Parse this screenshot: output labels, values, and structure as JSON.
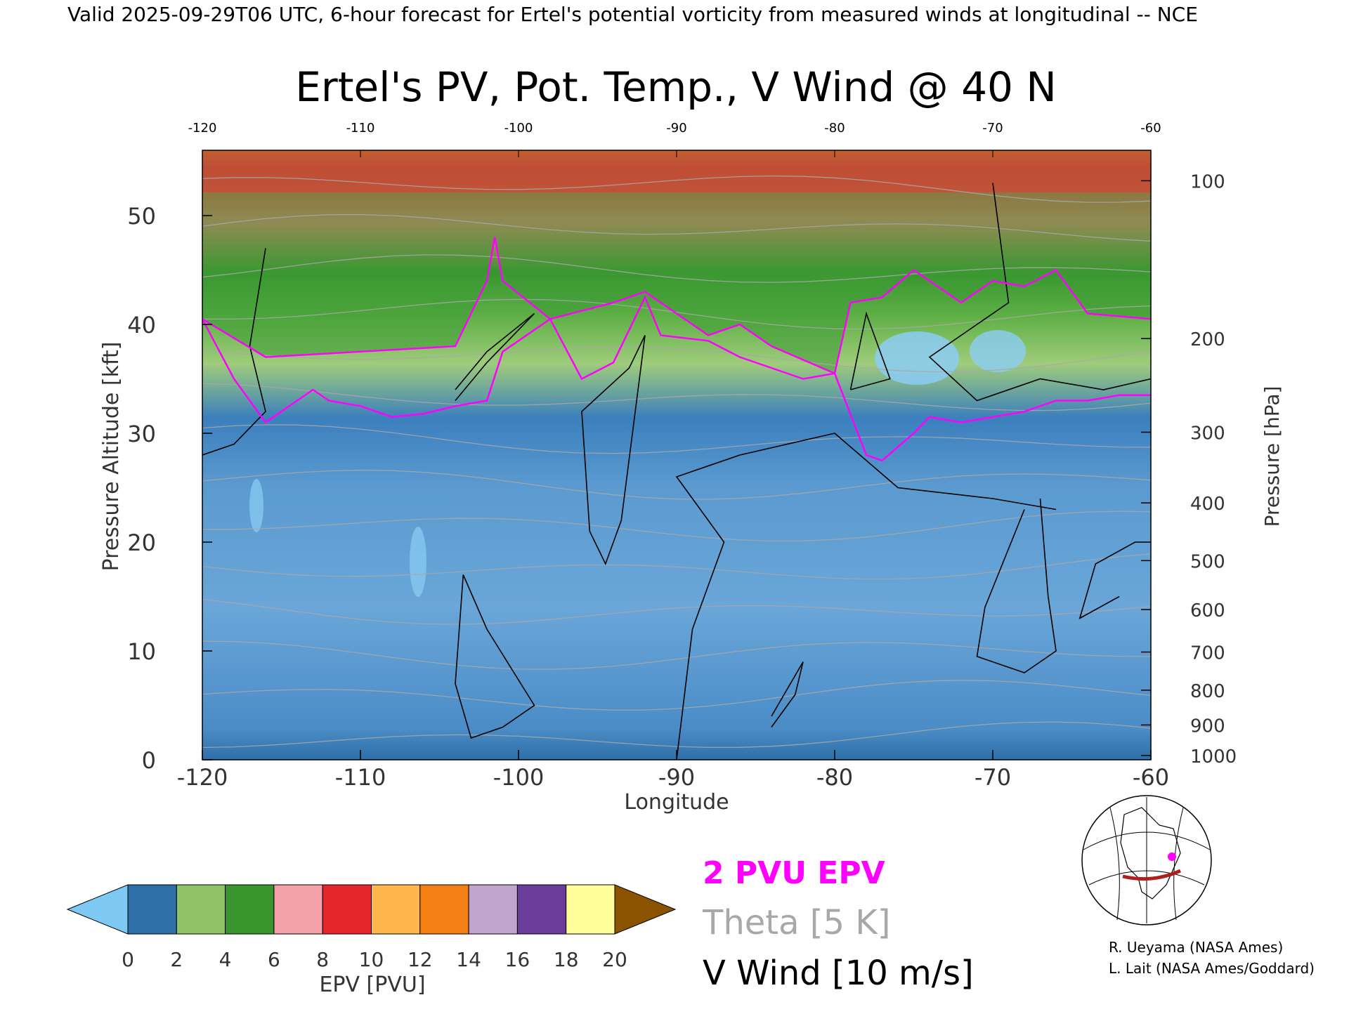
{
  "header": {
    "valid_line": "Valid 2025-09-29T06 UTC, 6-hour forecast for Ertel's potential vorticity from measured winds at longitudinal -- NCE"
  },
  "chart_data": {
    "type": "heatmap",
    "title": "Ertel's PV, Pot. Temp., V Wind @ 40 N",
    "xlabel": "Longitude",
    "ylabel_left": "Pressure Altitude [kft]",
    "ylabel_right": "Pressure [hPa]",
    "xlim": [
      -120,
      -60
    ],
    "ylim": [
      0,
      56
    ],
    "x_ticks": [
      "-120",
      "-110",
      "-100",
      "-90",
      "-80",
      "-70",
      "-60"
    ],
    "top_x_ticks": [
      "-120",
      "-110",
      "-100",
      "-90",
      "-80",
      "-70",
      "-60"
    ],
    "x_tick_values": [
      -120,
      -110,
      -100,
      -90,
      -80,
      -70,
      -60
    ],
    "y_ticks": [
      "0",
      "10",
      "20",
      "30",
      "40",
      "50"
    ],
    "y_tick_values": [
      0,
      10,
      20,
      30,
      40,
      50
    ],
    "pressure_ticks": [
      {
        "label": "100",
        "kft": 53.2
      },
      {
        "label": "200",
        "kft": 38.7
      },
      {
        "label": "300",
        "kft": 30.1
      },
      {
        "label": "400",
        "kft": 23.6
      },
      {
        "label": "500",
        "kft": 18.3
      },
      {
        "label": "600",
        "kft": 13.8
      },
      {
        "label": "700",
        "kft": 9.9
      },
      {
        "label": "800",
        "kft": 6.4
      },
      {
        "label": "900",
        "kft": 3.2
      },
      {
        "label": "1000",
        "kft": 0.4
      }
    ],
    "tropopause_2pvu": [
      [
        -120,
        40.5
      ],
      [
        -118,
        35
      ],
      [
        -116,
        31
      ],
      [
        -114,
        33
      ],
      [
        -113,
        34
      ],
      [
        -112,
        33
      ],
      [
        -110,
        32.5
      ],
      [
        -108,
        31.5
      ],
      [
        -106,
        31.8
      ],
      [
        -104,
        32.5
      ],
      [
        -102,
        33
      ],
      [
        -101,
        37.5
      ],
      [
        -98,
        40.5
      ],
      [
        -96,
        35
      ],
      [
        -94,
        36.5
      ],
      [
        -92,
        42.5
      ],
      [
        -91,
        39
      ],
      [
        -88,
        38.5
      ],
      [
        -86,
        37
      ],
      [
        -84,
        36
      ],
      [
        -82,
        35
      ],
      [
        -80,
        35.5
      ],
      [
        -78,
        28
      ],
      [
        -77,
        27.5
      ],
      [
        -75,
        30
      ],
      [
        -74,
        31.5
      ],
      [
        -72,
        31
      ],
      [
        -70,
        31.5
      ],
      [
        -68,
        32
      ],
      [
        -66,
        33
      ],
      [
        -64,
        33
      ],
      [
        -62,
        33.5
      ],
      [
        -60,
        33.5
      ]
    ],
    "tropopause_upper_2pvu": [
      [
        -120,
        40.5
      ],
      [
        -116,
        37
      ],
      [
        -110,
        37.5
      ],
      [
        -104,
        38
      ],
      [
        -102,
        44
      ],
      [
        -101.5,
        48
      ],
      [
        -101,
        44
      ],
      [
        -98,
        40.5
      ],
      [
        -94,
        42
      ],
      [
        -92,
        43
      ],
      [
        -88,
        39
      ],
      [
        -86,
        40
      ],
      [
        -84,
        38
      ],
      [
        -80,
        35.5
      ],
      [
        -79,
        42
      ],
      [
        -77,
        42.5
      ],
      [
        -75,
        45
      ],
      [
        -72,
        42
      ],
      [
        -70,
        44
      ],
      [
        -68,
        43.5
      ],
      [
        -66,
        45
      ],
      [
        -64,
        41
      ],
      [
        -60,
        40.5
      ]
    ],
    "colorbar": {
      "label": "EPV [PVU]",
      "ticks": [
        "0",
        "2",
        "4",
        "6",
        "8",
        "10",
        "12",
        "14",
        "16",
        "18",
        "20"
      ],
      "colors": [
        "#2e6fa8",
        "#90c26a",
        "#39962e",
        "#f4a0a8",
        "#e3262c",
        "#ffb74d",
        "#f47f12",
        "#c0a6cf",
        "#6a3d9a",
        "#ffff9c"
      ],
      "under_color": "#7ec8f4",
      "over_color": "#8b5300"
    },
    "legend": [
      {
        "label": "2 PVU EPV",
        "color": "#ff00ff"
      },
      {
        "label": "Theta [5 K]",
        "color": "#a8a8a8"
      },
      {
        "label": "V Wind [10 m/s]",
        "color": "#000000"
      }
    ],
    "credits": [
      "R. Ueyama (NASA Ames)",
      "L. Lait (NASA Ames/Goddard)"
    ]
  }
}
